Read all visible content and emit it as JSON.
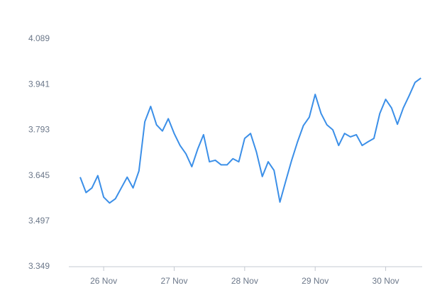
{
  "chart_data": {
    "type": "line",
    "categories": [
      null,
      null,
      null,
      null,
      "26 Nov",
      null,
      null,
      null,
      null,
      null,
      null,
      null,
      null,
      null,
      null,
      null,
      "27 Nov",
      null,
      null,
      null,
      null,
      null,
      null,
      null,
      null,
      null,
      null,
      null,
      "28 Nov",
      null,
      null,
      null,
      null,
      null,
      null,
      null,
      null,
      null,
      null,
      null,
      "29 Nov",
      null,
      null,
      null,
      null,
      null,
      null,
      null,
      null,
      null,
      null,
      null,
      "30 Nov",
      null,
      null,
      null,
      null,
      null,
      null
    ],
    "series": [
      {
        "color": "#3b8fe8",
        "values": [
          3.64,
          3.59,
          3.605,
          3.645,
          3.575,
          3.556,
          3.57,
          3.605,
          3.64,
          3.605,
          3.66,
          3.82,
          3.87,
          3.81,
          3.79,
          3.83,
          3.782,
          3.743,
          3.716,
          3.674,
          3.731,
          3.778,
          3.69,
          3.695,
          3.68,
          3.68,
          3.7,
          3.69,
          3.766,
          3.782,
          3.722,
          3.642,
          3.69,
          3.662,
          3.559,
          3.628,
          3.695,
          3.755,
          3.808,
          3.835,
          3.909,
          3.847,
          3.81,
          3.794,
          3.743,
          3.782,
          3.771,
          3.778,
          3.743,
          3.755,
          3.766,
          3.847,
          3.893,
          3.865,
          3.812,
          3.865,
          3.905,
          3.948,
          3.962
        ]
      }
    ],
    "ylim": [
      3.349,
      4.089
    ],
    "yticks": [
      3.349,
      3.497,
      3.645,
      3.793,
      3.941,
      4.089
    ]
  }
}
